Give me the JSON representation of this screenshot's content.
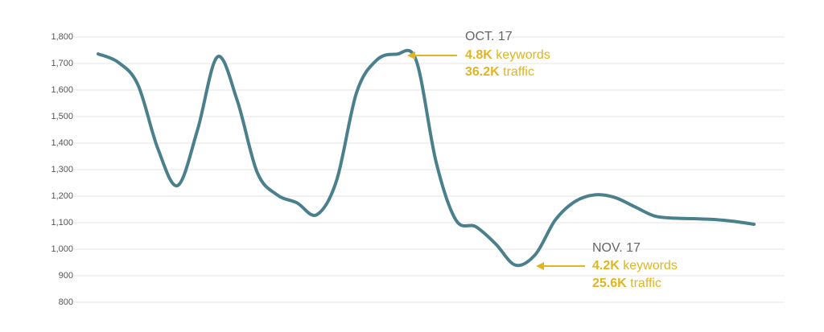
{
  "chart_data": {
    "type": "line",
    "categories": [
      null,
      null,
      null,
      null,
      null,
      null,
      null,
      null,
      null,
      null,
      null,
      null,
      null,
      null,
      null,
      null,
      null,
      null,
      null,
      null,
      null,
      null,
      null,
      null,
      null,
      null,
      null,
      null,
      null,
      null,
      null,
      null,
      null,
      null
    ],
    "series": [
      {
        "color": "#4a7f8c",
        "values": [
          1736,
          1705,
          1620,
          1380,
          1240,
          1450,
          1725,
          1560,
          1290,
          1205,
          1175,
          1130,
          1260,
          1590,
          1712,
          1735,
          1712,
          1330,
          1110,
          1085,
          1020,
          940,
          980,
          1110,
          1180,
          1205,
          1195,
          1160,
          1125,
          1117,
          1115,
          1112,
          1105,
          1094
        ]
      }
    ],
    "ylim": [
      800,
      1800
    ],
    "yticks": [
      {
        "value": 800,
        "label": "800"
      },
      {
        "value": 900,
        "label": "900"
      },
      {
        "value": 1000,
        "label": "1,000"
      },
      {
        "value": 1100,
        "label": "1,100"
      },
      {
        "value": 1200,
        "label": "1,200"
      },
      {
        "value": 1300,
        "label": "1,300"
      },
      {
        "value": 1400,
        "label": "1,400"
      },
      {
        "value": 1500,
        "label": "1,500"
      },
      {
        "value": 1600,
        "label": "1,600"
      },
      {
        "value": 1700,
        "label": "1,700"
      },
      {
        "value": 1800,
        "label": "1,800"
      }
    ],
    "grid": true,
    "annotation_color": "#e0b520",
    "annotations": [
      {
        "title": "OCT. 17",
        "lines": [
          {
            "bold": "4.8K",
            "text": "keywords"
          },
          {
            "bold": "36.2K",
            "text": "traffic"
          }
        ]
      },
      {
        "title": "NOV. 17",
        "lines": [
          {
            "bold": "4.2K",
            "text": "keywords"
          },
          {
            "bold": "25.6K",
            "text": "traffic"
          }
        ]
      }
    ]
  }
}
